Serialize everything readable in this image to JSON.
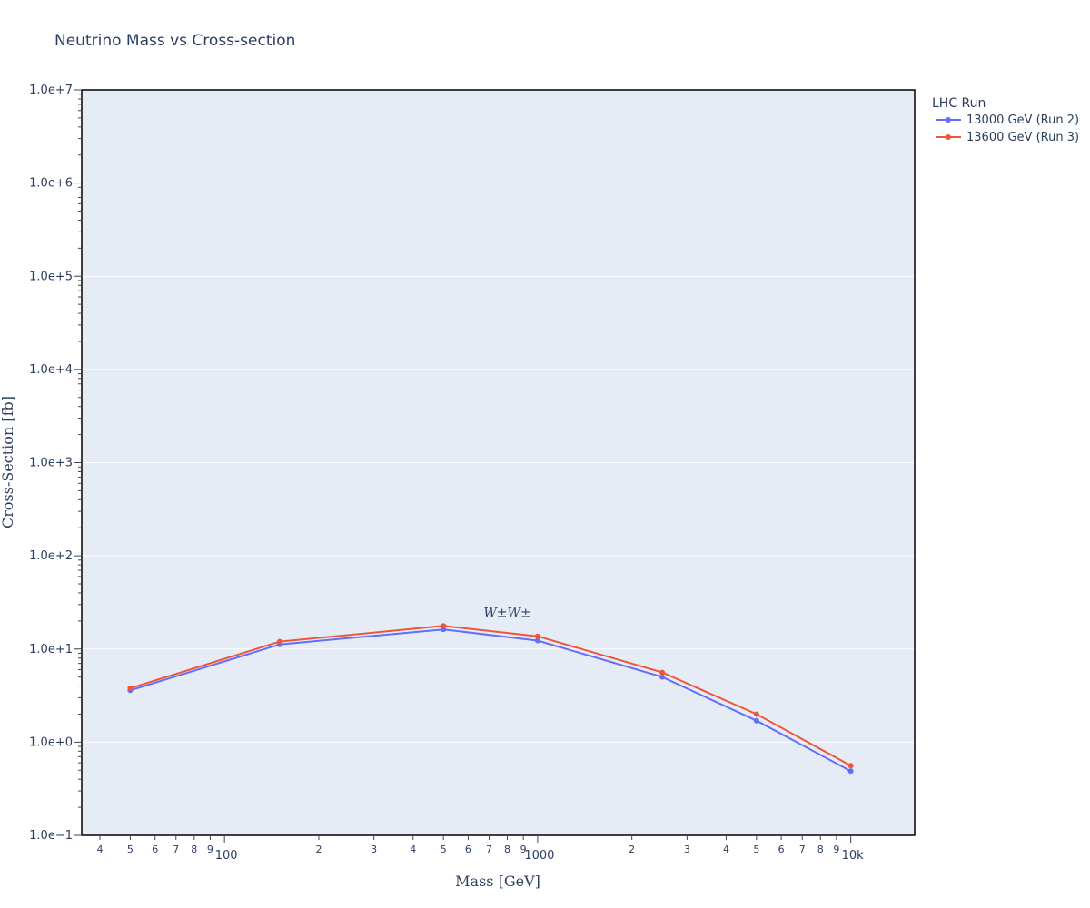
{
  "chart_data": {
    "type": "line",
    "title": "Neutrino Mass vs Cross-section",
    "xlabel": "Mass [GeV]",
    "ylabel": "Cross-Section [fb]",
    "x_scale": "log",
    "y_scale": "log",
    "xlim": [
      35,
      16000
    ],
    "ylim": [
      0.1,
      10000000
    ],
    "x_tick_labels": {
      "major": [
        "100",
        "1000",
        "10k"
      ],
      "minor": [
        "4",
        "5",
        "6",
        "7",
        "8",
        "9",
        "2",
        "3",
        "4",
        "5",
        "6",
        "7",
        "8",
        "9",
        "2",
        "3",
        "4",
        "5",
        "6",
        "7",
        "8",
        "9"
      ]
    },
    "y_tick_labels": [
      "1.0e−1",
      "1.0e+0",
      "1.0e+1",
      "1.0e+2",
      "1.0e+3",
      "1.0e+4",
      "1.0e+5",
      "1.0e+6",
      "1.0e+7"
    ],
    "grid": true,
    "legend": {
      "title": "LHC Run",
      "placement": "right"
    },
    "annotation": {
      "text": "W±W±",
      "x": 800,
      "y": 22
    },
    "x": [
      50,
      150,
      500,
      1000,
      2500,
      5000,
      10000
    ],
    "series": [
      {
        "name": "13000 GeV (Run 2)",
        "color": "#636efa",
        "values": [
          3.6,
          11.2,
          16.2,
          12.3,
          5.0,
          1.7,
          0.49
        ]
      },
      {
        "name": "13600 GeV (Run 3)",
        "color": "#ef553b",
        "values": [
          3.8,
          12.0,
          17.7,
          13.7,
          5.6,
          2.0,
          0.56
        ]
      }
    ]
  }
}
